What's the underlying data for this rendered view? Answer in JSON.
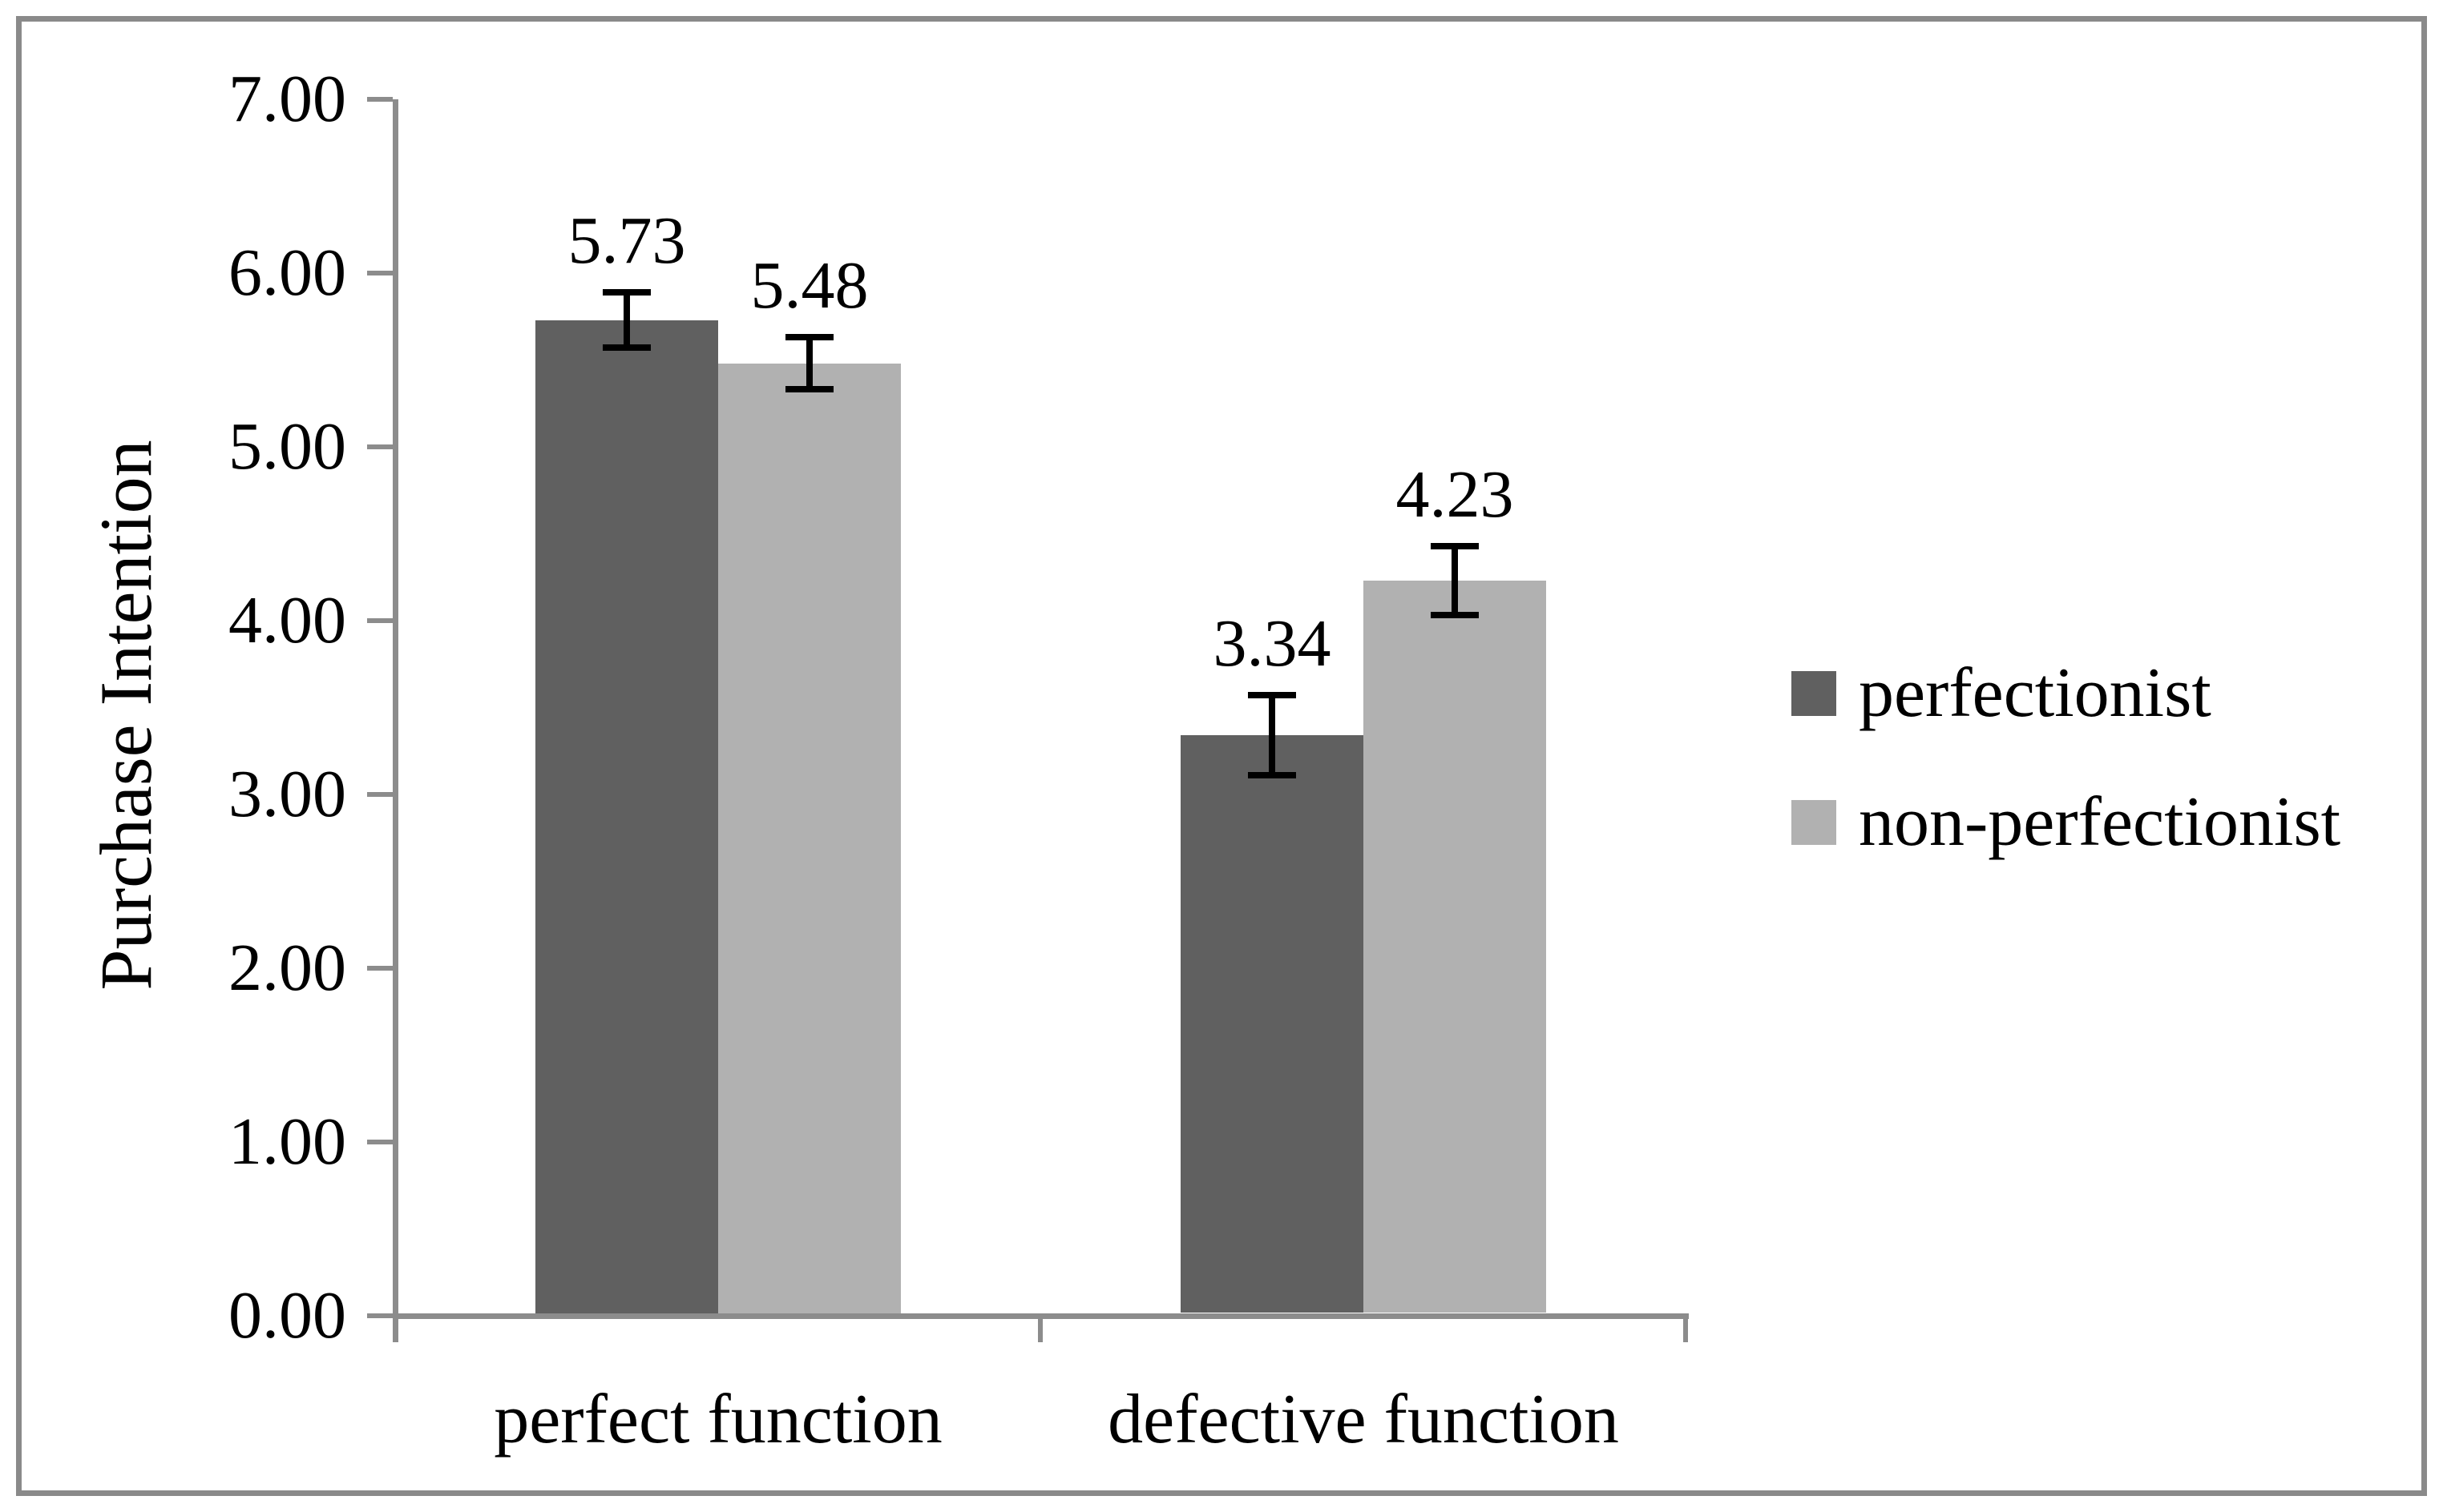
{
  "figure": {
    "background": "#ffffff",
    "border_color": "#8a8a8a"
  },
  "chart_data": {
    "type": "bar",
    "title": "",
    "xlabel": "",
    "ylabel": "Purchase Intention",
    "categories": [
      "perfect function",
      "defective function"
    ],
    "series": [
      {
        "name": "perfectionist",
        "color": "#606060",
        "values": [
          5.73,
          3.34
        ],
        "errors": [
          0.16,
          0.23
        ],
        "value_labels": [
          "5.73",
          "3.34"
        ]
      },
      {
        "name": "non-perfectionist",
        "color": "#b1b1b1",
        "values": [
          5.48,
          4.23
        ],
        "errors": [
          0.15,
          0.2
        ],
        "value_labels": [
          "5.48",
          "4.23"
        ]
      }
    ],
    "ylim": [
      0,
      7
    ],
    "ytick_step": 1,
    "ytick_labels": [
      "0.00",
      "1.00",
      "2.00",
      "3.00",
      "4.00",
      "5.00",
      "6.00",
      "7.00"
    ],
    "grid": false,
    "legend_position": "right",
    "error_bars": true,
    "axis_color": "#8c8c8c",
    "error_bar_color": "#000000",
    "text_color": "#000000"
  }
}
